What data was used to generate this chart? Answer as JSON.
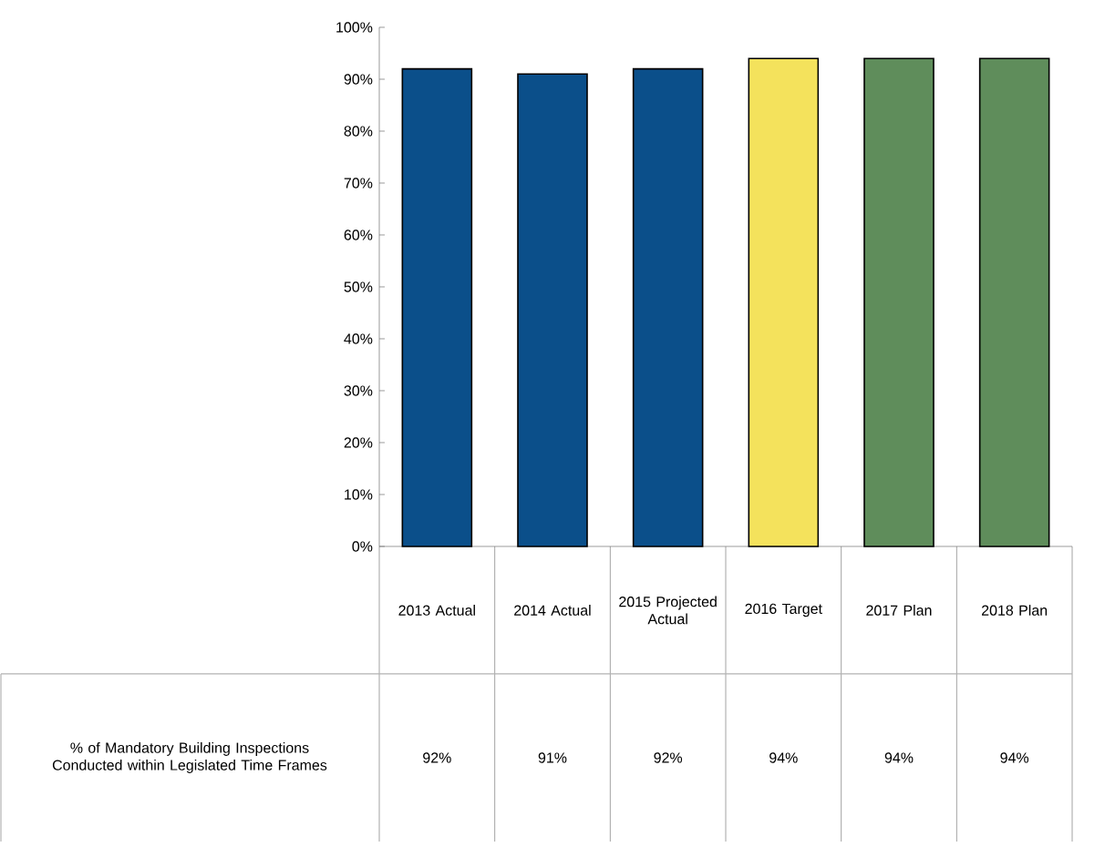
{
  "chart_data": {
    "type": "bar",
    "categories": [
      "2013 Actual",
      "2014 Actual",
      "2015 Projected Actual",
      "2016 Target",
      "2017 Plan",
      "2018 Plan"
    ],
    "series": [
      {
        "name": "% of Mandatory Building Inspections Conducted within Legislated Time Frames",
        "colors": [
          "#0b4f8a",
          "#0b4f8a",
          "#0b4f8a",
          "#f4e25c",
          "#5f8d5b",
          "#5f8d5b"
        ],
        "values": [
          92,
          91,
          92,
          94,
          94,
          94
        ],
        "value_labels": [
          "92%",
          "91%",
          "92%",
          "94%",
          "94%",
          "94%"
        ]
      }
    ],
    "ylim": [
      0,
      100
    ],
    "yticks": [
      {
        "value": 0,
        "label": "0%"
      },
      {
        "value": 10,
        "label": "10%"
      },
      {
        "value": 20,
        "label": "20%"
      },
      {
        "value": 30,
        "label": "30%"
      },
      {
        "value": 40,
        "label": "40%"
      },
      {
        "value": 50,
        "label": "50%"
      },
      {
        "value": 60,
        "label": "60%"
      },
      {
        "value": 70,
        "label": "70%"
      },
      {
        "value": 80,
        "label": "80%"
      },
      {
        "value": 90,
        "label": "90%"
      },
      {
        "value": 100,
        "label": "100%"
      }
    ],
    "data_labels": false
  }
}
